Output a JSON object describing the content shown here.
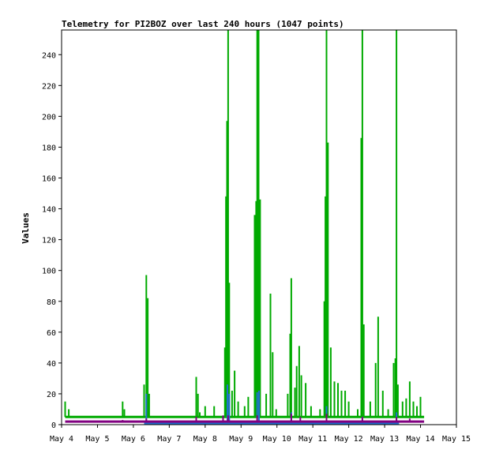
{
  "chart_data": {
    "type": "line",
    "title": "Telemetry for PI2BOZ over last 240 hours (1047 points)",
    "xlabel": "",
    "ylabel": "Values",
    "ylim": [
      0,
      256
    ],
    "xlim": [
      0,
      11
    ],
    "grid": false,
    "x_ticks": [
      "May 4",
      "May 5",
      "May 6",
      "May 7",
      "May 8",
      "May 9",
      "May 10",
      "May 11",
      "May 12",
      "May 13",
      "May 14",
      "May 15"
    ],
    "y_ticks": [
      "0",
      "20",
      "40",
      "60",
      "80",
      "100",
      "120",
      "140",
      "160",
      "180",
      "200",
      "220",
      "240"
    ],
    "colors": {
      "green": "#00aa00",
      "blue": "#1f6fd0",
      "purple": "#800080"
    },
    "series": [
      {
        "color": "#00aa00",
        "baseline": 5,
        "x_range": [
          0.1,
          10.1
        ],
        "spikes": [
          [
            0.1,
            15
          ],
          [
            0.2,
            10
          ],
          [
            1.7,
            15
          ],
          [
            1.75,
            10
          ],
          [
            2.3,
            26
          ],
          [
            2.36,
            97
          ],
          [
            2.4,
            82
          ],
          [
            2.44,
            20
          ],
          [
            3.75,
            31
          ],
          [
            3.8,
            20
          ],
          [
            3.85,
            8
          ],
          [
            4.0,
            12
          ],
          [
            4.25,
            12
          ],
          [
            4.55,
            50
          ],
          [
            4.58,
            148
          ],
          [
            4.61,
            197
          ],
          [
            4.64,
            256
          ],
          [
            4.67,
            92
          ],
          [
            4.75,
            22
          ],
          [
            4.82,
            35
          ],
          [
            4.92,
            15
          ],
          [
            5.1,
            12
          ],
          [
            5.2,
            18
          ],
          [
            5.38,
            136
          ],
          [
            5.42,
            145
          ],
          [
            5.45,
            256
          ],
          [
            5.49,
            256
          ],
          [
            5.53,
            146
          ],
          [
            5.7,
            20
          ],
          [
            5.82,
            85
          ],
          [
            5.88,
            47
          ],
          [
            5.98,
            10
          ],
          [
            6.3,
            20
          ],
          [
            6.37,
            59
          ],
          [
            6.4,
            95
          ],
          [
            6.5,
            24
          ],
          [
            6.55,
            38
          ],
          [
            6.62,
            51
          ],
          [
            6.68,
            32
          ],
          [
            6.8,
            27
          ],
          [
            6.95,
            12
          ],
          [
            7.2,
            10
          ],
          [
            7.32,
            80
          ],
          [
            7.35,
            148
          ],
          [
            7.38,
            256
          ],
          [
            7.42,
            183
          ],
          [
            7.5,
            50
          ],
          [
            7.6,
            28
          ],
          [
            7.7,
            27
          ],
          [
            7.8,
            22
          ],
          [
            7.9,
            22
          ],
          [
            8.0,
            15
          ],
          [
            8.25,
            10
          ],
          [
            8.35,
            186
          ],
          [
            8.38,
            256
          ],
          [
            8.42,
            65
          ],
          [
            8.6,
            15
          ],
          [
            8.75,
            40
          ],
          [
            8.82,
            70
          ],
          [
            8.95,
            22
          ],
          [
            9.1,
            10
          ],
          [
            9.25,
            40
          ],
          [
            9.3,
            43
          ],
          [
            9.33,
            256
          ],
          [
            9.37,
            26
          ],
          [
            9.5,
            15
          ],
          [
            9.6,
            17
          ],
          [
            9.7,
            28
          ],
          [
            9.8,
            15
          ],
          [
            9.9,
            12
          ],
          [
            10.0,
            18
          ]
        ]
      },
      {
        "color": "#1f6fd0",
        "baseline": 1,
        "x_range": [
          2.3,
          9.4
        ],
        "spikes": [
          [
            2.36,
            20
          ],
          [
            4.62,
            26
          ],
          [
            4.67,
            20
          ],
          [
            5.45,
            21
          ],
          [
            5.5,
            22
          ],
          [
            6.4,
            8
          ],
          [
            7.38,
            12
          ],
          [
            8.38,
            5
          ],
          [
            9.33,
            8
          ]
        ]
      },
      {
        "color": "#800080",
        "baseline": 2,
        "x_range": [
          0.1,
          10.1
        ],
        "spikes": [
          [
            1.7,
            3
          ],
          [
            2.36,
            4
          ],
          [
            3.75,
            5
          ],
          [
            4.5,
            6
          ],
          [
            4.64,
            6
          ],
          [
            5.45,
            6
          ],
          [
            6.4,
            7
          ],
          [
            6.65,
            5
          ],
          [
            7.38,
            7
          ],
          [
            8.38,
            5
          ],
          [
            9.33,
            5
          ],
          [
            9.7,
            4
          ]
        ]
      }
    ]
  }
}
